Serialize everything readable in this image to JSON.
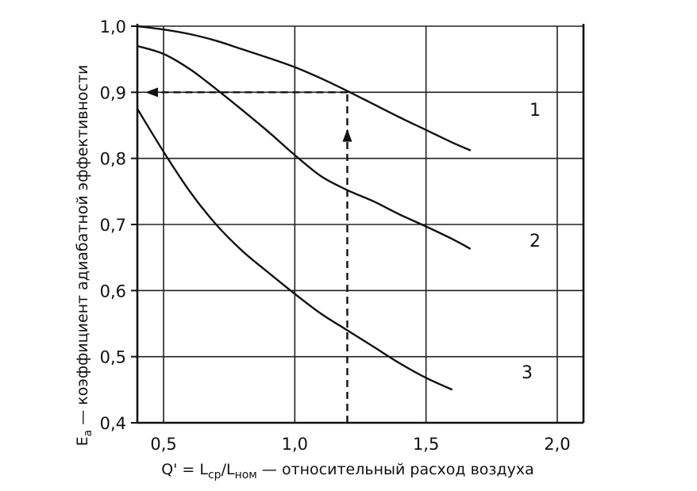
{
  "chart_data": {
    "type": "line",
    "ylabel_main": "E",
    "ylabel_sub": "a",
    "ylabel_rest": " — коэффициент адиабатной эффективности",
    "xlabel_main": "Q' = L",
    "xlabel_sub1": "ср",
    "xlabel_mid": "/L",
    "xlabel_sub2": "ном",
    "xlabel_rest": " — относительный расход воздуха",
    "xlim": [
      0.4,
      2.1
    ],
    "ylim": [
      0.4,
      1.0
    ],
    "xticks": [
      "0,5",
      "1,0",
      "1,5",
      "2,0"
    ],
    "xtick_values": [
      0.5,
      1.0,
      1.5,
      2.0
    ],
    "yticks": [
      "1,0",
      "0,9",
      "0,8",
      "0,7",
      "0,6",
      "0,5",
      "0,4"
    ],
    "ytick_values": [
      1.0,
      0.9,
      0.8,
      0.7,
      0.6,
      0.5,
      0.4
    ],
    "grid": true,
    "series": [
      {
        "name": "1",
        "x": [
          0.4,
          0.5,
          0.6,
          0.7,
          0.8,
          0.9,
          1.0,
          1.1,
          1.2,
          1.3,
          1.4,
          1.5,
          1.6,
          1.67
        ],
        "y": [
          1.0,
          0.995,
          0.988,
          0.978,
          0.965,
          0.952,
          0.938,
          0.921,
          0.902,
          0.882,
          0.862,
          0.843,
          0.824,
          0.812
        ]
      },
      {
        "name": "2",
        "x": [
          0.4,
          0.5,
          0.6,
          0.7,
          0.8,
          0.9,
          1.0,
          1.1,
          1.2,
          1.3,
          1.4,
          1.5,
          1.6,
          1.67
        ],
        "y": [
          0.97,
          0.958,
          0.935,
          0.905,
          0.873,
          0.84,
          0.805,
          0.773,
          0.752,
          0.735,
          0.715,
          0.697,
          0.678,
          0.663
        ]
      },
      {
        "name": "3",
        "x": [
          0.4,
          0.5,
          0.6,
          0.7,
          0.8,
          0.9,
          1.0,
          1.1,
          1.2,
          1.3,
          1.4,
          1.5,
          1.6
        ],
        "y": [
          0.875,
          0.81,
          0.75,
          0.7,
          0.66,
          0.627,
          0.595,
          0.565,
          0.54,
          0.515,
          0.49,
          0.468,
          0.45
        ]
      }
    ],
    "annotation": {
      "style": "dashed-arrow",
      "x": 1.2,
      "y": 0.9,
      "from_x": 1.2,
      "to_y": 0.9,
      "to_x": 0.4
    }
  }
}
